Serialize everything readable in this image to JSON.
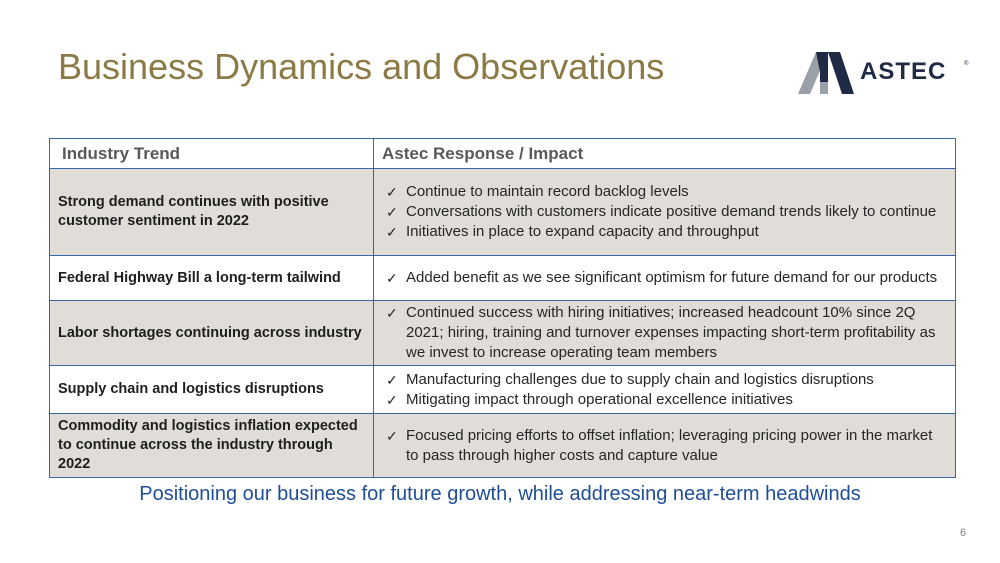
{
  "title": "Business Dynamics and Observations",
  "logo": {
    "text": "ASTEC",
    "tm": "®"
  },
  "table": {
    "headers": [
      "Industry Trend",
      "Astec Response / Impact"
    ],
    "rows": [
      {
        "trend": "Strong demand continues with positive customer sentiment in 2022",
        "responses": [
          "Continue to maintain record backlog levels",
          "Conversations with customers indicate positive demand trends likely to continue",
          "Initiatives in place to expand capacity and throughput"
        ]
      },
      {
        "trend": "Federal Highway Bill a long-term tailwind",
        "responses": [
          "Added benefit as we see significant optimism for future demand for our products"
        ]
      },
      {
        "trend": "Labor shortages continuing across industry",
        "responses": [
          "Continued success with hiring initiatives; increased headcount 10% since 2Q 2021; hiring, training and turnover expenses impacting short-term profitability as we invest to increase operating team members"
        ]
      },
      {
        "trend": "Supply chain and logistics disruptions",
        "responses": [
          "Manufacturing challenges due to supply chain and logistics disruptions",
          "Mitigating impact through operational excellence initiatives"
        ]
      },
      {
        "trend": "Commodity and logistics inflation expected to continue across the industry through 2022",
        "responses": [
          "Focused pricing efforts to offset inflation; leveraging pricing power in the market to pass through higher costs and capture value"
        ]
      }
    ]
  },
  "footer": "Positioning our business for future growth, while addressing near-term headwinds",
  "page_number": "6",
  "colors": {
    "title": "#8c7a45",
    "border": "#3a67a8",
    "row_bg": "#e0dcd7",
    "footer": "#1f4e96"
  }
}
